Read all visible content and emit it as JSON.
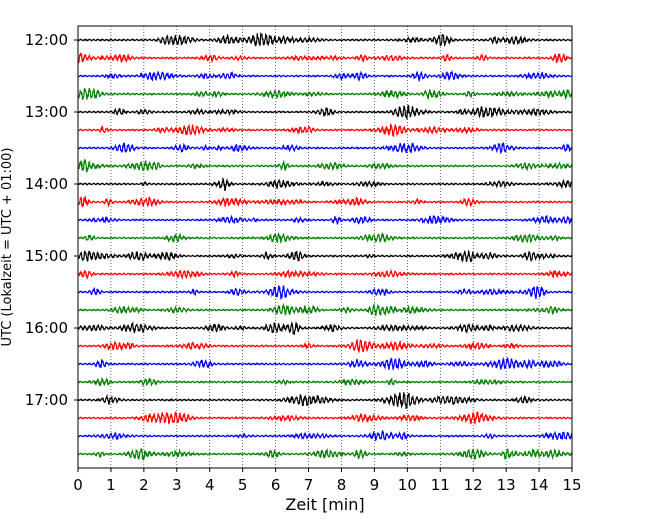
{
  "chart_data": {
    "type": "line",
    "title": "",
    "xlabel": "Zeit  [min]",
    "ylabel": "UTC (Lokalzeit = UTC + 01:00)",
    "xlim": [
      0,
      15
    ],
    "x_ticks": [
      "0",
      "1",
      "2",
      "3",
      "4",
      "5",
      "6",
      "7",
      "8",
      "9",
      "10",
      "11",
      "12",
      "13",
      "14",
      "15"
    ],
    "y_ticks": [
      "12:00",
      "13:00",
      "14:00",
      "15:00",
      "16:00",
      "17:00"
    ],
    "grid": "vertical dotted lines at each minute",
    "trace_interval_minutes": 15,
    "trace_colors": [
      "#000000",
      "#ff0000",
      "#0000ff",
      "#007f00"
    ],
    "series": [
      {
        "start": "12:00",
        "color": "#000000"
      },
      {
        "start": "12:15",
        "color": "#ff0000"
      },
      {
        "start": "12:30",
        "color": "#0000ff"
      },
      {
        "start": "12:45",
        "color": "#007f00"
      },
      {
        "start": "13:00",
        "color": "#000000"
      },
      {
        "start": "13:15",
        "color": "#ff0000"
      },
      {
        "start": "13:30",
        "color": "#0000ff"
      },
      {
        "start": "13:45",
        "color": "#007f00"
      },
      {
        "start": "14:00",
        "color": "#000000"
      },
      {
        "start": "14:15",
        "color": "#ff0000"
      },
      {
        "start": "14:30",
        "color": "#0000ff"
      },
      {
        "start": "14:45",
        "color": "#007f00"
      },
      {
        "start": "15:00",
        "color": "#000000"
      },
      {
        "start": "15:15",
        "color": "#ff0000"
      },
      {
        "start": "15:30",
        "color": "#0000ff"
      },
      {
        "start": "15:45",
        "color": "#007f00"
      },
      {
        "start": "16:00",
        "color": "#000000"
      },
      {
        "start": "16:15",
        "color": "#ff0000"
      },
      {
        "start": "16:30",
        "color": "#0000ff"
      },
      {
        "start": "16:45",
        "color": "#007f00"
      },
      {
        "start": "17:00",
        "color": "#000000"
      },
      {
        "start": "17:15",
        "color": "#ff0000"
      },
      {
        "start": "17:30",
        "color": "#0000ff"
      },
      {
        "start": "17:45",
        "color": "#007f00"
      }
    ]
  }
}
